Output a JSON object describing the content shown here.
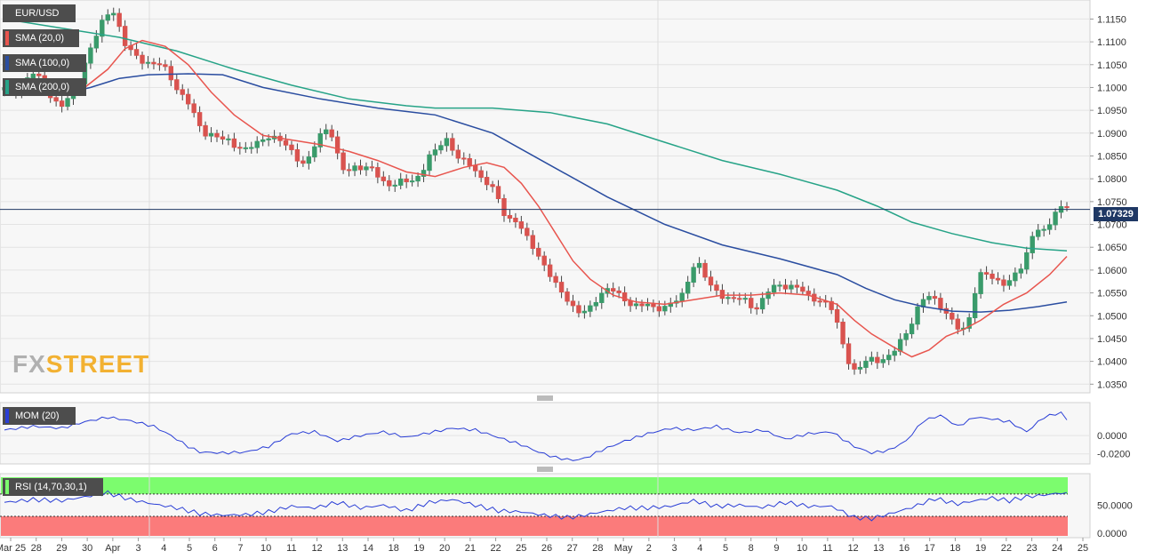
{
  "chart_data": {
    "type": "candlestick",
    "symbol": "EUR/USD",
    "last_price": "1.07329",
    "colors": {
      "bull": "#3a9b6b",
      "bear": "#d9534f",
      "sma20": "#e8554e",
      "sma100": "#2a4da0",
      "sma200": "#26a387",
      "mom": "#2a3ed6",
      "rsi": "#2a3ed6",
      "rsi_overbought": "#7cfc6e",
      "rsi_oversold": "#fb7b7b",
      "price_line": "#1f3864"
    },
    "indicators": [
      "SMA (20,0)",
      "SMA (100,0)",
      "SMA (200,0)"
    ],
    "price_axis": {
      "ylim": [
        1.0335,
        1.118
      ],
      "ticks": [
        "1.1150",
        "1.1100",
        "1.1050",
        "1.1000",
        "1.0950",
        "1.0900",
        "1.0850",
        "1.0800",
        "1.0750",
        "1.0700",
        "1.0650",
        "1.0600",
        "1.0550",
        "1.0500",
        "1.0450",
        "1.0400",
        "1.0350"
      ]
    },
    "x_labels": [
      "Mar 25",
      "28",
      "29",
      "30",
      "Apr",
      "3",
      "4",
      "5",
      "6",
      "7",
      "10",
      "11",
      "12",
      "13",
      "14",
      "18",
      "19",
      "20",
      "21",
      "22",
      "25",
      "26",
      "27",
      "28",
      "May",
      "2",
      "3",
      "4",
      "5",
      "8",
      "9",
      "10",
      "11",
      "12",
      "13",
      "16",
      "17",
      "18",
      "19",
      "22",
      "23",
      "24",
      "25"
    ],
    "price_path": [
      [
        0,
        1.0995
      ],
      [
        2,
        1.1
      ],
      [
        3,
        1.099
      ],
      [
        4,
        1.1005
      ],
      [
        5,
        1.1035
      ],
      [
        6,
        1.1025
      ],
      [
        7,
        1.1015
      ],
      [
        8,
        1.099
      ],
      [
        9,
        1.0975
      ],
      [
        10,
        1.096
      ],
      [
        11,
        1.096
      ],
      [
        12,
        1.0985
      ],
      [
        13,
        1.1
      ],
      [
        14,
        1.103
      ],
      [
        15,
        1.1075
      ],
      [
        16,
        1.1095
      ],
      [
        17,
        1.113
      ],
      [
        18,
        1.1155
      ],
      [
        19,
        1.1172
      ],
      [
        20,
        1.116
      ],
      [
        21,
        1.11
      ],
      [
        22,
        1.1085
      ],
      [
        23,
        1.1075
      ],
      [
        24,
        1.1065
      ],
      [
        25,
        1.1055
      ],
      [
        26,
        1.105
      ],
      [
        27,
        1.105
      ],
      [
        28,
        1.105
      ],
      [
        29,
        1.1035
      ],
      [
        30,
        1.101
      ],
      [
        31,
        1.0985
      ],
      [
        32,
        1.0975
      ],
      [
        33,
        1.0955
      ],
      [
        34,
        1.093
      ],
      [
        35,
        1.0905
      ],
      [
        36,
        1.0895
      ],
      [
        37,
        1.0895
      ],
      [
        38,
        1.0885
      ],
      [
        39,
        1.089
      ],
      [
        40,
        1.088
      ],
      [
        41,
        1.087
      ],
      [
        42,
        1.0865
      ],
      [
        43,
        1.086
      ],
      [
        44,
        1.088
      ],
      [
        45,
        1.088
      ],
      [
        46,
        1.0895
      ],
      [
        47,
        1.089
      ],
      [
        48,
        1.0885
      ],
      [
        49,
        1.088
      ],
      [
        50,
        1.087
      ],
      [
        51,
        1.0855
      ],
      [
        52,
        1.0835
      ],
      [
        53,
        1.083
      ],
      [
        54,
        1.0855
      ],
      [
        55,
        1.089
      ],
      [
        56,
        1.0905
      ],
      [
        57,
        1.0915
      ],
      [
        58,
        1.0875
      ],
      [
        59,
        1.0825
      ],
      [
        60,
        1.0815
      ],
      [
        61,
        1.0825
      ],
      [
        62,
        1.083
      ],
      [
        63,
        1.082
      ],
      [
        64,
        1.0825
      ],
      [
        65,
        1.0815
      ],
      [
        66,
        1.08
      ],
      [
        67,
        1.079
      ],
      [
        68,
        1.0785
      ],
      [
        69,
        1.079
      ],
      [
        70,
        1.0795
      ],
      [
        71,
        1.0795
      ],
      [
        72,
        1.08
      ],
      [
        73,
        1.081
      ],
      [
        74,
        1.0835
      ],
      [
        75,
        1.086
      ],
      [
        76,
        1.086
      ],
      [
        77,
        1.0895
      ],
      [
        78,
        1.088
      ],
      [
        79,
        1.085
      ],
      [
        80,
        1.084
      ],
      [
        81,
        1.0835
      ],
      [
        82,
        1.083
      ],
      [
        83,
        1.081
      ],
      [
        84,
        1.0795
      ],
      [
        85,
        1.0785
      ],
      [
        86,
        1.077
      ],
      [
        87,
        1.074
      ],
      [
        88,
        1.071
      ],
      [
        89,
        1.0715
      ],
      [
        90,
        1.07
      ],
      [
        91,
        1.068
      ],
      [
        92,
        1.066
      ],
      [
        93,
        1.0645
      ],
      [
        94,
        1.062
      ],
      [
        95,
        1.06
      ],
      [
        96,
        1.0575
      ],
      [
        97,
        1.056
      ],
      [
        98,
        1.0545
      ],
      [
        99,
        1.053
      ],
      [
        100,
        1.051
      ],
      [
        101,
        1.0505
      ],
      [
        102,
        1.051
      ],
      [
        103,
        1.0525
      ],
      [
        104,
        1.0545
      ],
      [
        105,
        1.0555
      ],
      [
        106,
        1.056
      ],
      [
        107,
        1.055
      ],
      [
        108,
        1.054
      ],
      [
        109,
        1.053
      ],
      [
        110,
        1.0525
      ],
      [
        111,
        1.052
      ],
      [
        112,
        1.0525
      ],
      [
        113,
        1.052
      ],
      [
        114,
        1.0515
      ],
      [
        115,
        1.052
      ],
      [
        116,
        1.052
      ],
      [
        117,
        1.053
      ],
      [
        118,
        1.0535
      ],
      [
        119,
        1.0555
      ],
      [
        120,
        1.06
      ],
      [
        121,
        1.062
      ],
      [
        122,
        1.06
      ],
      [
        123,
        1.057
      ],
      [
        124,
        1.056
      ],
      [
        125,
        1.055
      ],
      [
        126,
        1.054
      ],
      [
        127,
        1.0535
      ],
      [
        128,
        1.0535
      ],
      [
        129,
        1.054
      ],
      [
        130,
        1.053
      ],
      [
        131,
        1.0515
      ],
      [
        132,
        1.052
      ],
      [
        133,
        1.0545
      ],
      [
        134,
        1.056
      ],
      [
        135,
        1.057
      ],
      [
        136,
        1.0565
      ],
      [
        137,
        1.0565
      ],
      [
        138,
        1.056
      ],
      [
        139,
        1.056
      ],
      [
        140,
        1.055
      ],
      [
        141,
        1.054
      ],
      [
        142,
        1.0535
      ],
      [
        143,
        1.053
      ],
      [
        144,
        1.052
      ],
      [
        145,
        1.051
      ],
      [
        146,
        1.046
      ],
      [
        147,
        1.042
      ],
      [
        148,
        1.038
      ],
      [
        149,
        1.0375
      ],
      [
        150,
        1.0395
      ],
      [
        151,
        1.041
      ],
      [
        152,
        1.0405
      ],
      [
        153,
        1.04
      ],
      [
        154,
        1.0405
      ],
      [
        155,
        1.041
      ],
      [
        156,
        1.044
      ],
      [
        157,
        1.0455
      ],
      [
        158,
        1.047
      ],
      [
        159,
        1.05
      ],
      [
        160,
        1.0525
      ],
      [
        161,
        1.0545
      ],
      [
        162,
        1.0545
      ],
      [
        163,
        1.053
      ],
      [
        164,
        1.051
      ],
      [
        165,
        1.0495
      ],
      [
        166,
        1.048
      ],
      [
        167,
        1.047
      ],
      [
        168,
        1.0475
      ],
      [
        169,
        1.052
      ],
      [
        170,
        1.058
      ],
      [
        171,
        1.0595
      ],
      [
        172,
        1.059
      ],
      [
        173,
        1.058
      ],
      [
        174,
        1.0575
      ],
      [
        175,
        1.0565
      ],
      [
        176,
        1.058
      ],
      [
        177,
        1.06
      ],
      [
        178,
        1.0615
      ],
      [
        179,
        1.066
      ],
      [
        180,
        1.069
      ],
      [
        181,
        1.0685
      ],
      [
        182,
        1.068
      ],
      [
        183,
        1.0725
      ],
      [
        184,
        1.0735
      ],
      [
        185,
        1.074
      ]
    ],
    "sma20": [
      [
        0,
        1.1
      ],
      [
        10,
        1.099
      ],
      [
        14,
        1.1
      ],
      [
        18,
        1.104
      ],
      [
        21,
        1.1085
      ],
      [
        24,
        1.1103
      ],
      [
        28,
        1.109
      ],
      [
        32,
        1.105
      ],
      [
        36,
        1.099
      ],
      [
        40,
        1.094
      ],
      [
        45,
        1.0895
      ],
      [
        50,
        1.0885
      ],
      [
        55,
        1.0875
      ],
      [
        60,
        1.086
      ],
      [
        65,
        1.084
      ],
      [
        70,
        1.0815
      ],
      [
        75,
        1.0805
      ],
      [
        80,
        1.0825
      ],
      [
        84,
        1.0835
      ],
      [
        87,
        1.0825
      ],
      [
        90,
        1.079
      ],
      [
        93,
        1.074
      ],
      [
        96,
        1.068
      ],
      [
        99,
        1.062
      ],
      [
        102,
        1.058
      ],
      [
        106,
        1.0545
      ],
      [
        110,
        1.053
      ],
      [
        115,
        1.0525
      ],
      [
        120,
        1.0535
      ],
      [
        125,
        1.0545
      ],
      [
        130,
        1.0545
      ],
      [
        135,
        1.055
      ],
      [
        140,
        1.0545
      ],
      [
        145,
        1.0525
      ],
      [
        148,
        1.049
      ],
      [
        151,
        1.046
      ],
      [
        155,
        1.043
      ],
      [
        158,
        1.041
      ],
      [
        161,
        1.0425
      ],
      [
        164,
        1.0455
      ],
      [
        167,
        1.047
      ],
      [
        170,
        1.049
      ],
      [
        174,
        1.0525
      ],
      [
        178,
        1.055
      ],
      [
        182,
        1.059
      ],
      [
        185,
        1.063
      ]
    ],
    "sma100": [
      [
        0,
        1.099
      ],
      [
        10,
        1.0985
      ],
      [
        15,
        1.1
      ],
      [
        20,
        1.102
      ],
      [
        25,
        1.1028
      ],
      [
        32,
        1.103
      ],
      [
        38,
        1.1028
      ],
      [
        45,
        1.1
      ],
      [
        55,
        1.0975
      ],
      [
        65,
        1.0955
      ],
      [
        75,
        1.094
      ],
      [
        85,
        1.09
      ],
      [
        95,
        1.083
      ],
      [
        105,
        1.076
      ],
      [
        115,
        1.07
      ],
      [
        125,
        1.0655
      ],
      [
        135,
        1.0625
      ],
      [
        145,
        1.059
      ],
      [
        150,
        1.056
      ],
      [
        155,
        1.0535
      ],
      [
        160,
        1.052
      ],
      [
        165,
        1.051
      ],
      [
        170,
        1.0508
      ],
      [
        175,
        1.0512
      ],
      [
        180,
        1.052
      ],
      [
        185,
        1.053
      ]
    ],
    "sma200": [
      [
        0,
        1.115
      ],
      [
        10,
        1.113
      ],
      [
        20,
        1.111
      ],
      [
        30,
        1.108
      ],
      [
        40,
        1.104
      ],
      [
        50,
        1.1005
      ],
      [
        60,
        1.0975
      ],
      [
        70,
        1.096
      ],
      [
        75,
        1.0955
      ],
      [
        85,
        1.0955
      ],
      [
        95,
        1.0945
      ],
      [
        105,
        1.092
      ],
      [
        115,
        1.088
      ],
      [
        125,
        1.084
      ],
      [
        135,
        1.081
      ],
      [
        145,
        1.0775
      ],
      [
        152,
        1.074
      ],
      [
        158,
        1.0705
      ],
      [
        165,
        1.068
      ],
      [
        172,
        1.066
      ],
      [
        178,
        1.0648
      ],
      [
        185,
        1.0642
      ]
    ],
    "mom": {
      "label": "MOM (20)",
      "ylim": [
        -0.029,
        0.033
      ],
      "ticks": [
        "0.0000",
        "-0.0200"
      ],
      "values": [
        [
          0,
          0.006
        ],
        [
          5,
          0.01
        ],
        [
          10,
          0.008
        ],
        [
          14,
          0.015
        ],
        [
          18,
          0.02
        ],
        [
          22,
          0.016
        ],
        [
          26,
          0.01
        ],
        [
          29,
          0.0
        ],
        [
          32,
          -0.012
        ],
        [
          34,
          -0.018
        ],
        [
          38,
          -0.019
        ],
        [
          42,
          -0.018
        ],
        [
          46,
          -0.012
        ],
        [
          50,
          0.002
        ],
        [
          54,
          0.004
        ],
        [
          58,
          -0.006
        ],
        [
          62,
          0.0
        ],
        [
          66,
          0.004
        ],
        [
          70,
          -0.002
        ],
        [
          74,
          0.003
        ],
        [
          78,
          0.008
        ],
        [
          82,
          0.006
        ],
        [
          86,
          -0.002
        ],
        [
          90,
          -0.01
        ],
        [
          93,
          -0.018
        ],
        [
          96,
          -0.024
        ],
        [
          99,
          -0.027
        ],
        [
          101,
          -0.025
        ],
        [
          104,
          -0.016
        ],
        [
          108,
          -0.006
        ],
        [
          112,
          0.002
        ],
        [
          116,
          0.008
        ],
        [
          120,
          0.006
        ],
        [
          124,
          0.01
        ],
        [
          128,
          0.003
        ],
        [
          132,
          0.006
        ],
        [
          136,
          -0.004
        ],
        [
          140,
          0.002
        ],
        [
          144,
          0.004
        ],
        [
          148,
          -0.012
        ],
        [
          151,
          -0.019
        ],
        [
          154,
          -0.016
        ],
        [
          157,
          -0.006
        ],
        [
          160,
          0.016
        ],
        [
          163,
          0.022
        ],
        [
          166,
          0.01
        ],
        [
          169,
          0.02
        ],
        [
          172,
          0.018
        ],
        [
          175,
          0.015
        ],
        [
          178,
          0.004
        ],
        [
          181,
          0.02
        ],
        [
          184,
          0.025
        ],
        [
          185,
          0.017
        ]
      ]
    },
    "rsi": {
      "label": "RSI (14,70,30,1)",
      "ylim": [
        -5,
        100
      ],
      "overbought": 70,
      "oversold": 30,
      "ticks": [
        "50.0000",
        "0.0000"
      ],
      "values": [
        [
          0,
          55
        ],
        [
          5,
          60
        ],
        [
          10,
          58
        ],
        [
          14,
          65
        ],
        [
          18,
          72
        ],
        [
          22,
          60
        ],
        [
          26,
          52
        ],
        [
          30,
          45
        ],
        [
          34,
          35
        ],
        [
          38,
          32
        ],
        [
          42,
          33
        ],
        [
          46,
          38
        ],
        [
          50,
          48
        ],
        [
          54,
          45
        ],
        [
          58,
          55
        ],
        [
          62,
          45
        ],
        [
          66,
          50
        ],
        [
          70,
          40
        ],
        [
          74,
          55
        ],
        [
          78,
          60
        ],
        [
          82,
          50
        ],
        [
          86,
          40
        ],
        [
          90,
          38
        ],
        [
          94,
          32
        ],
        [
          98,
          28
        ],
        [
          100,
          30
        ],
        [
          104,
          38
        ],
        [
          108,
          45
        ],
        [
          112,
          45
        ],
        [
          116,
          48
        ],
        [
          120,
          58
        ],
        [
          124,
          48
        ],
        [
          128,
          50
        ],
        [
          132,
          46
        ],
        [
          136,
          55
        ],
        [
          140,
          48
        ],
        [
          144,
          48
        ],
        [
          148,
          28
        ],
        [
          151,
          26
        ],
        [
          154,
          34
        ],
        [
          158,
          46
        ],
        [
          162,
          62
        ],
        [
          166,
          52
        ],
        [
          169,
          58
        ],
        [
          172,
          63
        ],
        [
          175,
          58
        ],
        [
          178,
          65
        ],
        [
          181,
          68
        ],
        [
          184,
          72
        ],
        [
          185,
          70
        ]
      ]
    }
  }
}
